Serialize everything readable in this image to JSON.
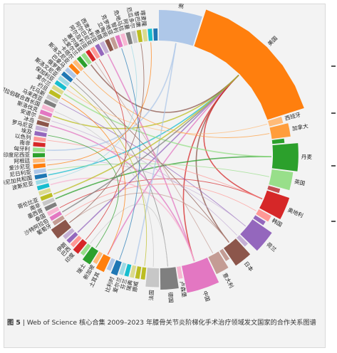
{
  "caption": {
    "figure_number": "图 5",
    "separator": "|",
    "text": "Web of Science 核心合集 2009–2023 年膝骨关节炎阶梯化手术治疗领域发文国家的合作关系图谱"
  },
  "chart_data": {
    "type": "chord",
    "title": "",
    "countries": [
      {
        "name": "澳大利亚",
        "weight": 9,
        "color": "#aec7e8"
      },
      {
        "name": "美国",
        "weight": 28,
        "color": "#ff7f0e"
      },
      {
        "name": "西班牙",
        "weight": 1.5,
        "color": "#ffbb78"
      },
      {
        "name": "加拿大",
        "weight": 3,
        "color": "#ff9d3c"
      },
      {
        "name": "",
        "weight": 1,
        "color": "#2ca02c"
      },
      {
        "name": "丹麦",
        "weight": 6,
        "color": "#2ca02c"
      },
      {
        "name": "英国",
        "weight": 4,
        "color": "#98df8a"
      },
      {
        "name": "",
        "weight": 1,
        "color": "#c44e52"
      },
      {
        "name": "奥地利",
        "weight": 5,
        "color": "#d62728"
      },
      {
        "name": "韩国",
        "weight": 1.5,
        "color": "#ff9896"
      },
      {
        "name": "",
        "weight": 1,
        "color": "#9467bd"
      },
      {
        "name": "荷兰",
        "weight": 5,
        "color": "#9467bd"
      },
      {
        "name": "",
        "weight": 1,
        "color": "#c5b0d5"
      },
      {
        "name": "日本",
        "weight": 4,
        "color": "#8c564b"
      },
      {
        "name": "",
        "weight": 1,
        "color": "#c49c94"
      },
      {
        "name": "意大利",
        "weight": 3,
        "color": "#c49c94"
      },
      {
        "name": "中国",
        "weight": 7,
        "color": "#e377c2"
      },
      {
        "name": "卢森堡",
        "weight": 1,
        "color": "#f7b6d2"
      },
      {
        "name": "德国",
        "weight": 4,
        "color": "#7f7f7f"
      },
      {
        "name": "法国",
        "weight": 3,
        "color": "#c7c7c7"
      },
      {
        "name": "",
        "weight": 1,
        "color": "#bcbd22"
      },
      {
        "name": "挪威",
        "weight": 1,
        "color": "#bcbd22"
      },
      {
        "name": "瑞典",
        "weight": 1,
        "color": "#dbdb8d"
      },
      {
        "name": "芬兰",
        "weight": 1,
        "color": "#17becf"
      },
      {
        "name": "爱尔兰",
        "weight": 1,
        "color": "#9edae5"
      },
      {
        "name": "比利时",
        "weight": 1.5,
        "color": "#1f77b4"
      },
      {
        "name": "",
        "weight": 1,
        "color": "#aec7e8"
      },
      {
        "name": "土耳其",
        "weight": 2,
        "color": "#ff7f0e"
      },
      {
        "name": "新加坡",
        "weight": 1,
        "color": "#ffbb78"
      },
      {
        "name": "瑞士",
        "weight": 2,
        "color": "#2ca02c"
      },
      {
        "name": "",
        "weight": 1,
        "color": "#98df8a"
      },
      {
        "name": "印度",
        "weight": 1.5,
        "color": "#d62728"
      },
      {
        "name": "巴西",
        "weight": 1,
        "color": "#ff9896"
      },
      {
        "name": "伊朗",
        "weight": 1,
        "color": "#9467bd"
      },
      {
        "name": "",
        "weight": 1,
        "color": "#c5b0d5"
      },
      {
        "name": "",
        "weight": 2.5,
        "color": "#8c564b"
      },
      {
        "name": "葡萄牙",
        "weight": 1,
        "color": "#c49c94"
      },
      {
        "name": "沙特阿拉伯",
        "weight": 1,
        "color": "#e377c2"
      },
      {
        "name": "泰国",
        "weight": 1,
        "color": "#f7b6d2"
      },
      {
        "name": "墨西哥",
        "weight": 1,
        "color": "#7f7f7f"
      },
      {
        "name": "南非",
        "weight": 1,
        "color": "#c7c7c7"
      },
      {
        "name": "哥伦比亚",
        "weight": 1,
        "color": "#bcbd22"
      },
      {
        "name": "",
        "weight": 1,
        "color": "#dbdb8d"
      },
      {
        "name": "",
        "weight": 1,
        "color": "#17becf"
      },
      {
        "name": "波斯尼亚",
        "weight": 1,
        "color": "#9edae5"
      },
      {
        "name": "多米尼加共和国",
        "weight": 1,
        "color": "#1f77b4"
      },
      {
        "name": "尼日利亚",
        "weight": 1,
        "color": "#aec7e8"
      },
      {
        "name": "爱沙尼亚",
        "weight": 1,
        "color": "#ff7f0e"
      },
      {
        "name": "阿根廷",
        "weight": 1,
        "color": "#ffbb78"
      },
      {
        "name": "印度尼西亚",
        "weight": 1,
        "color": "#2ca02c"
      },
      {
        "name": "匈牙利",
        "weight": 1,
        "color": "#98df8a"
      },
      {
        "name": "南非",
        "weight": 1,
        "color": "#d62728"
      },
      {
        "name": "以色列",
        "weight": 1,
        "color": "#ff9896"
      },
      {
        "name": "埃及",
        "weight": 1,
        "color": "#9467bd"
      },
      {
        "name": "罗马尼亚",
        "weight": 1,
        "color": "#c5b0d5"
      },
      {
        "name": "冰岛",
        "weight": 1,
        "color": "#8c564b"
      },
      {
        "name": "安道尔",
        "weight": 1,
        "color": "#c49c94"
      },
      {
        "name": "斯洛伐克",
        "weight": 1,
        "color": "#e377c2"
      },
      {
        "name": "阿拉伯联合酋长国",
        "weight": 1,
        "color": "#f7b6d2"
      },
      {
        "name": "马来西亚",
        "weight": 1,
        "color": "#7f7f7f"
      },
      {
        "name": "托马斯",
        "weight": 1,
        "color": "#c7c7c7"
      },
      {
        "name": "约旦",
        "weight": 1,
        "color": "#bcbd22"
      },
      {
        "name": "爱尔兰",
        "weight": 1,
        "color": "#dbdb8d"
      },
      {
        "name": "保加利亚",
        "weight": 1,
        "color": "#17becf"
      },
      {
        "name": "斯洛文尼亚",
        "weight": 1,
        "color": "#9edae5"
      },
      {
        "name": "俄罗斯",
        "weight": 1,
        "color": "#1f77b4"
      },
      {
        "name": "巴拿马",
        "weight": 1,
        "color": "#aec7e8"
      },
      {
        "name": "斯洛文尼亚",
        "weight": 1,
        "color": "#ff7f0e"
      },
      {
        "name": "卡塔尔",
        "weight": 1,
        "color": "#ffbb78"
      },
      {
        "name": "北爱尔兰",
        "weight": 1,
        "color": "#2ca02c"
      },
      {
        "name": "塞尔维亚",
        "weight": 1,
        "color": "#98df8a"
      },
      {
        "name": "阿尔及利亚",
        "weight": 1,
        "color": "#d62728"
      },
      {
        "name": "阿尔巴尼亚",
        "weight": 1,
        "color": "#ff9896"
      },
      {
        "name": "西澳大利亚",
        "weight": 1,
        "color": "#9467bd"
      },
      {
        "name": "希腊",
        "weight": 1,
        "color": "#c5b0d5"
      },
      {
        "name": "立陶宛",
        "weight": 1,
        "color": "#8c564b"
      },
      {
        "name": "克罗地亚",
        "weight": 1,
        "color": "#c49c94"
      },
      {
        "name": "智利",
        "weight": 1,
        "color": "#e377c2"
      },
      {
        "name": "危地马拉",
        "weight": 1,
        "color": "#f7b6d2"
      },
      {
        "name": "阿曼",
        "weight": 1,
        "color": "#7f7f7f"
      },
      {
        "name": "厄瓜多尔",
        "weight": 1,
        "color": "#c7c7c7"
      },
      {
        "name": "黎巴嫩",
        "weight": 1,
        "color": "#bcbd22"
      },
      {
        "name": "喀麦隆",
        "weight": 1,
        "color": "#dbdb8d"
      },
      {
        "name": "",
        "weight": 1,
        "color": "#17becf"
      },
      {
        "name": "",
        "weight": 1,
        "color": "#1f77b4"
      }
    ],
    "links": [
      [
        1,
        16,
        "#d62728"
      ],
      [
        1,
        27,
        "#e377c2"
      ],
      [
        1,
        13,
        "#8c564b"
      ],
      [
        1,
        33,
        "#9467bd"
      ],
      [
        1,
        57,
        "#bcbd22"
      ],
      [
        1,
        45,
        "#17becf"
      ],
      [
        1,
        70,
        "#8c564b"
      ],
      [
        1,
        8,
        "#d62728"
      ],
      [
        5,
        40,
        "#2ca02c"
      ],
      [
        5,
        62,
        "#98df8a"
      ],
      [
        8,
        38,
        "#d62728"
      ],
      [
        8,
        52,
        "#ff9896"
      ],
      [
        11,
        60,
        "#9467bd"
      ],
      [
        11,
        48,
        "#c5b0d5"
      ],
      [
        13,
        66,
        "#8c564b"
      ],
      [
        13,
        35,
        "#c49c94"
      ],
      [
        16,
        55,
        "#e377c2"
      ],
      [
        16,
        74,
        "#e377c2"
      ],
      [
        16,
        43,
        "#f7b6d2"
      ],
      [
        18,
        65,
        "#7f7f7f"
      ],
      [
        18,
        30,
        "#c7c7c7"
      ],
      [
        19,
        58,
        "#c7c7c7"
      ],
      [
        0,
        50,
        "#aec7e8"
      ],
      [
        0,
        22,
        "#aec7e8"
      ],
      [
        2,
        63,
        "#ffbb78"
      ],
      [
        3,
        68,
        "#ff9d3c"
      ],
      [
        6,
        46,
        "#98df8a"
      ],
      [
        9,
        36,
        "#ff9896"
      ],
      [
        15,
        71,
        "#c49c94"
      ],
      [
        25,
        77,
        "#1f77b4"
      ],
      [
        27,
        61,
        "#ff7f0e"
      ],
      [
        29,
        53,
        "#2ca02c"
      ],
      [
        31,
        72,
        "#d62728"
      ],
      [
        35,
        81,
        "#8c564b"
      ],
      [
        44,
        79,
        "#9edae5"
      ],
      [
        47,
        83,
        "#ff7f0e"
      ],
      [
        1,
        37,
        "#7f7f7f"
      ],
      [
        1,
        41,
        "#bcbd22"
      ],
      [
        12,
        56,
        "#c5b0d5"
      ],
      [
        20,
        64,
        "#bcbd22"
      ]
    ]
  }
}
